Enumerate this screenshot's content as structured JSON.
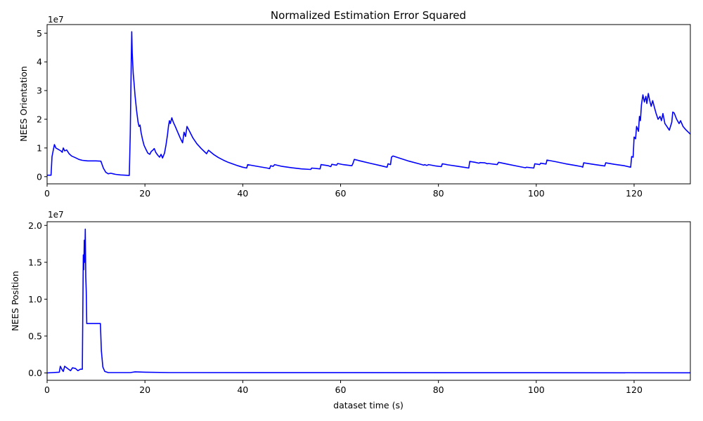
{
  "chart_data": [
    {
      "type": "line",
      "title": "Normalized Estimation Error Squared",
      "xlabel": "",
      "ylabel": "NEES Orientation",
      "offset_label": "1e7",
      "scale": 10000000,
      "xlim": [
        0,
        131.5
      ],
      "ylim": [
        -0.25,
        5.3
      ],
      "xticks": [
        0,
        20,
        40,
        60,
        80,
        100,
        120
      ],
      "xtick_labels": [
        "0",
        "20",
        "40",
        "60",
        "80",
        "100",
        "120"
      ],
      "yticks": [
        0,
        1,
        2,
        3,
        4,
        5
      ],
      "ytick_labels": [
        "0",
        "1",
        "2",
        "3",
        "4",
        "5"
      ],
      "color": "#0000ff",
      "grid": false,
      "series": [
        {
          "name": "",
          "points": [
            [
              0,
              0.05
            ],
            [
              0.8,
              0.05
            ],
            [
              1.0,
              0.7
            ],
            [
              1.3,
              0.95
            ],
            [
              1.5,
              1.12
            ],
            [
              1.8,
              1.0
            ],
            [
              2.3,
              0.95
            ],
            [
              2.8,
              0.9
            ],
            [
              3.1,
              0.85
            ],
            [
              3.3,
              1.0
            ],
            [
              3.6,
              0.9
            ],
            [
              4.0,
              0.93
            ],
            [
              4.5,
              0.8
            ],
            [
              5.0,
              0.72
            ],
            [
              5.8,
              0.66
            ],
            [
              6.5,
              0.6
            ],
            [
              7.2,
              0.57
            ],
            [
              7.8,
              0.56
            ],
            [
              8.3,
              0.55
            ],
            [
              9.0,
              0.55
            ],
            [
              10.0,
              0.55
            ],
            [
              11.0,
              0.54
            ],
            [
              11.5,
              0.3
            ],
            [
              12.0,
              0.15
            ],
            [
              12.5,
              0.1
            ],
            [
              13.0,
              0.12
            ],
            [
              13.5,
              0.1
            ],
            [
              14.0,
              0.08
            ],
            [
              15.0,
              0.06
            ],
            [
              16.0,
              0.05
            ],
            [
              16.8,
              0.04
            ],
            [
              17.0,
              1.5
            ],
            [
              17.2,
              4.0
            ],
            [
              17.3,
              5.05
            ],
            [
              17.4,
              4.3
            ],
            [
              17.6,
              3.6
            ],
            [
              17.8,
              3.2
            ],
            [
              18.0,
              2.8
            ],
            [
              18.3,
              2.3
            ],
            [
              18.6,
              1.9
            ],
            [
              18.8,
              1.75
            ],
            [
              19.0,
              1.8
            ],
            [
              19.2,
              1.55
            ],
            [
              19.5,
              1.3
            ],
            [
              19.8,
              1.1
            ],
            [
              20.2,
              0.95
            ],
            [
              20.6,
              0.82
            ],
            [
              21.0,
              0.78
            ],
            [
              21.3,
              0.88
            ],
            [
              21.6,
              0.92
            ],
            [
              21.9,
              0.98
            ],
            [
              22.2,
              0.85
            ],
            [
              22.6,
              0.75
            ],
            [
              23.0,
              0.68
            ],
            [
              23.3,
              0.78
            ],
            [
              23.6,
              0.65
            ],
            [
              24.0,
              0.82
            ],
            [
              24.3,
              1.1
            ],
            [
              24.6,
              1.45
            ],
            [
              24.8,
              1.75
            ],
            [
              25.0,
              1.95
            ],
            [
              25.2,
              1.85
            ],
            [
              25.5,
              2.05
            ],
            [
              25.8,
              1.9
            ],
            [
              26.2,
              1.75
            ],
            [
              26.7,
              1.55
            ],
            [
              27.2,
              1.35
            ],
            [
              27.7,
              1.18
            ],
            [
              28.0,
              1.55
            ],
            [
              28.3,
              1.4
            ],
            [
              28.6,
              1.75
            ],
            [
              29.0,
              1.62
            ],
            [
              29.8,
              1.35
            ],
            [
              30.6,
              1.15
            ],
            [
              31.5,
              0.98
            ],
            [
              32.3,
              0.85
            ],
            [
              32.6,
              0.8
            ],
            [
              33.0,
              0.92
            ],
            [
              34.0,
              0.78
            ],
            [
              35.0,
              0.67
            ],
            [
              36.0,
              0.58
            ],
            [
              37.0,
              0.5
            ],
            [
              38.0,
              0.44
            ],
            [
              39.0,
              0.38
            ],
            [
              40.0,
              0.33
            ],
            [
              40.8,
              0.3
            ],
            [
              41.0,
              0.42
            ],
            [
              43.0,
              0.36
            ],
            [
              45.0,
              0.3
            ],
            [
              45.5,
              0.28
            ],
            [
              45.7,
              0.38
            ],
            [
              46.2,
              0.36
            ],
            [
              46.5,
              0.42
            ],
            [
              48.0,
              0.36
            ],
            [
              50.0,
              0.31
            ],
            [
              52.0,
              0.27
            ],
            [
              53.9,
              0.25
            ],
            [
              54.1,
              0.3
            ],
            [
              55.8,
              0.27
            ],
            [
              56.0,
              0.42
            ],
            [
              57.5,
              0.38
            ],
            [
              58.0,
              0.35
            ],
            [
              58.2,
              0.43
            ],
            [
              59.2,
              0.4
            ],
            [
              59.4,
              0.46
            ],
            [
              60.5,
              0.42
            ],
            [
              62.3,
              0.38
            ],
            [
              62.5,
              0.45
            ],
            [
              62.8,
              0.6
            ],
            [
              64.0,
              0.55
            ],
            [
              66.0,
              0.47
            ],
            [
              68.0,
              0.39
            ],
            [
              69.5,
              0.33
            ],
            [
              69.7,
              0.45
            ],
            [
              70.2,
              0.42
            ],
            [
              70.4,
              0.68
            ],
            [
              70.7,
              0.72
            ],
            [
              72.0,
              0.65
            ],
            [
              74.0,
              0.54
            ],
            [
              76.0,
              0.45
            ],
            [
              77.0,
              0.4
            ],
            [
              77.2,
              0.42
            ],
            [
              77.6,
              0.39
            ],
            [
              78.0,
              0.42
            ],
            [
              79.5,
              0.37
            ],
            [
              80.6,
              0.35
            ],
            [
              80.8,
              0.45
            ],
            [
              82.0,
              0.41
            ],
            [
              84.0,
              0.36
            ],
            [
              85.5,
              0.32
            ],
            [
              86.2,
              0.3
            ],
            [
              86.4,
              0.53
            ],
            [
              87.5,
              0.5
            ],
            [
              88.3,
              0.47
            ],
            [
              88.5,
              0.49
            ],
            [
              89.5,
              0.48
            ],
            [
              90.0,
              0.45
            ],
            [
              90.2,
              0.46
            ],
            [
              92.0,
              0.42
            ],
            [
              92.3,
              0.5
            ],
            [
              94.0,
              0.44
            ],
            [
              96.0,
              0.37
            ],
            [
              97.8,
              0.31
            ],
            [
              98.0,
              0.33
            ],
            [
              99.5,
              0.3
            ],
            [
              99.7,
              0.45
            ],
            [
              100.7,
              0.42
            ],
            [
              100.9,
              0.47
            ],
            [
              102.0,
              0.44
            ],
            [
              102.2,
              0.58
            ],
            [
              104.0,
              0.52
            ],
            [
              106.0,
              0.45
            ],
            [
              108.0,
              0.39
            ],
            [
              109.3,
              0.35
            ],
            [
              109.5,
              0.33
            ],
            [
              109.7,
              0.48
            ],
            [
              112.0,
              0.42
            ],
            [
              114.0,
              0.37
            ],
            [
              114.2,
              0.48
            ],
            [
              116.0,
              0.43
            ],
            [
              118.0,
              0.38
            ],
            [
              119.3,
              0.33
            ],
            [
              119.5,
              0.7
            ],
            [
              119.8,
              0.68
            ],
            [
              120.0,
              1.38
            ],
            [
              120.3,
              1.32
            ],
            [
              120.5,
              1.75
            ],
            [
              120.9,
              1.58
            ],
            [
              121.1,
              2.1
            ],
            [
              121.3,
              1.95
            ],
            [
              121.5,
              2.5
            ],
            [
              121.8,
              2.85
            ],
            [
              122.1,
              2.6
            ],
            [
              122.4,
              2.8
            ],
            [
              122.6,
              2.55
            ],
            [
              122.9,
              2.9
            ],
            [
              123.2,
              2.65
            ],
            [
              123.5,
              2.45
            ],
            [
              123.8,
              2.65
            ],
            [
              124.1,
              2.45
            ],
            [
              124.5,
              2.2
            ],
            [
              124.9,
              2.0
            ],
            [
              125.3,
              2.1
            ],
            [
              125.6,
              1.95
            ],
            [
              125.9,
              2.2
            ],
            [
              126.3,
              1.85
            ],
            [
              126.7,
              1.75
            ],
            [
              127.2,
              1.62
            ],
            [
              127.7,
              1.9
            ],
            [
              127.9,
              2.25
            ],
            [
              128.2,
              2.22
            ],
            [
              128.7,
              2.0
            ],
            [
              129.2,
              1.85
            ],
            [
              129.5,
              1.95
            ],
            [
              130.0,
              1.75
            ],
            [
              130.5,
              1.65
            ],
            [
              131.5,
              1.48
            ]
          ]
        }
      ]
    },
    {
      "type": "line",
      "title": "",
      "xlabel": "dataset time (s)",
      "ylabel": "NEES Position",
      "offset_label": "1e7",
      "scale": 10000000,
      "xlim": [
        0,
        131.5
      ],
      "ylim": [
        -0.1,
        2.05
      ],
      "xticks": [
        0,
        20,
        40,
        60,
        80,
        100,
        120
      ],
      "xtick_labels": [
        "0",
        "20",
        "40",
        "60",
        "80",
        "100",
        "120"
      ],
      "yticks": [
        0,
        0.5,
        1.0,
        1.5,
        2.0
      ],
      "ytick_labels": [
        "0.0",
        "0.5",
        "1.0",
        "1.5",
        "2.0"
      ],
      "color": "#0000ff",
      "grid": false,
      "series": [
        {
          "name": "",
          "points": [
            [
              0,
              0.0
            ],
            [
              2.5,
              0.01
            ],
            [
              2.7,
              0.09
            ],
            [
              3.0,
              0.05
            ],
            [
              3.3,
              0.02
            ],
            [
              3.6,
              0.09
            ],
            [
              4.2,
              0.06
            ],
            [
              4.8,
              0.03
            ],
            [
              5.2,
              0.07
            ],
            [
              5.8,
              0.06
            ],
            [
              6.3,
              0.03
            ],
            [
              6.8,
              0.05
            ],
            [
              7.2,
              0.05
            ],
            [
              7.4,
              1.6
            ],
            [
              7.5,
              1.4
            ],
            [
              7.6,
              1.8
            ],
            [
              7.7,
              1.5
            ],
            [
              7.8,
              1.95
            ],
            [
              7.9,
              1.3
            ],
            [
              8.0,
              1.1
            ],
            [
              8.1,
              0.67
            ],
            [
              9.0,
              0.67
            ],
            [
              10.0,
              0.67
            ],
            [
              10.9,
              0.67
            ],
            [
              11.1,
              0.3
            ],
            [
              11.4,
              0.08
            ],
            [
              11.8,
              0.02
            ],
            [
              12.5,
              0.005
            ],
            [
              17.0,
              0.005
            ],
            [
              18.0,
              0.015
            ],
            [
              20.0,
              0.01
            ],
            [
              25.0,
              0.005
            ],
            [
              131.5,
              0.002
            ]
          ]
        }
      ]
    }
  ]
}
